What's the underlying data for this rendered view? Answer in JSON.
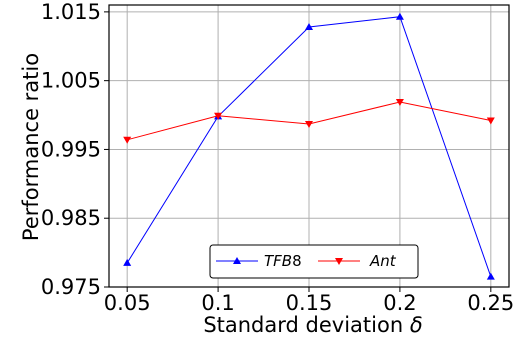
{
  "chart_data": {
    "type": "line",
    "x": [
      0.05,
      0.1,
      0.15,
      0.2,
      0.25
    ],
    "x_tick_labels": [
      "0.05",
      "0.1",
      "0.15",
      "0.2",
      "0.25"
    ],
    "y_ticks": [
      0.975,
      0.985,
      0.995,
      1.005,
      1.015
    ],
    "y_tick_labels": [
      "0.975",
      "0.985",
      "0.995",
      "1.005",
      "1.015"
    ],
    "xlim": [
      0.04,
      0.26
    ],
    "ylim": [
      0.975,
      1.016
    ],
    "xlabel": "Standard deviation δ",
    "ylabel": "Performance ratio",
    "grid": true,
    "legend_position": "bottom-center",
    "series": [
      {
        "name": "TFB8",
        "color": "#0000ff",
        "marker": "triangle-up",
        "values": [
          0.9785,
          0.9998,
          1.0128,
          1.0143,
          0.9765
        ]
      },
      {
        "name": "Ant",
        "color": "#ff0000",
        "marker": "triangle-down",
        "values": [
          0.9964,
          0.9999,
          0.9987,
          1.0019,
          0.9992
        ]
      }
    ]
  }
}
